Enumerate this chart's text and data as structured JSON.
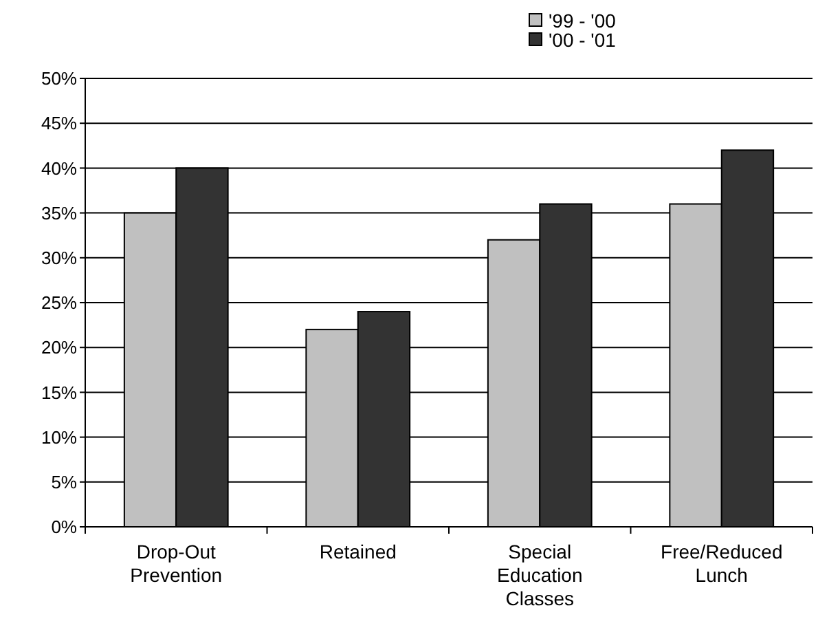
{
  "chart_data": {
    "type": "bar",
    "categories": [
      "Drop-Out Prevention",
      "Retained",
      "Special Education Classes",
      "Free/Reduced Lunch"
    ],
    "series": [
      {
        "name": "'99 - '00",
        "color": "#c0c0c0",
        "values": [
          35,
          22,
          32,
          36
        ]
      },
      {
        "name": "'00 - '01",
        "color": "#333333",
        "values": [
          40,
          24,
          36,
          42
        ]
      }
    ],
    "ylim": [
      0,
      50
    ],
    "yticks": [
      {
        "value": 0,
        "label": "0%"
      },
      {
        "value": 5,
        "label": "5%"
      },
      {
        "value": 10,
        "label": "10%"
      },
      {
        "value": 15,
        "label": "15%"
      },
      {
        "value": 20,
        "label": "20%"
      },
      {
        "value": 25,
        "label": "25%"
      },
      {
        "value": 30,
        "label": "30%"
      },
      {
        "value": 35,
        "label": "35%"
      },
      {
        "value": 40,
        "label": "40%"
      },
      {
        "value": 45,
        "label": "45%"
      },
      {
        "value": 50,
        "label": "50%"
      }
    ],
    "grid": "y",
    "legend": "top right"
  }
}
